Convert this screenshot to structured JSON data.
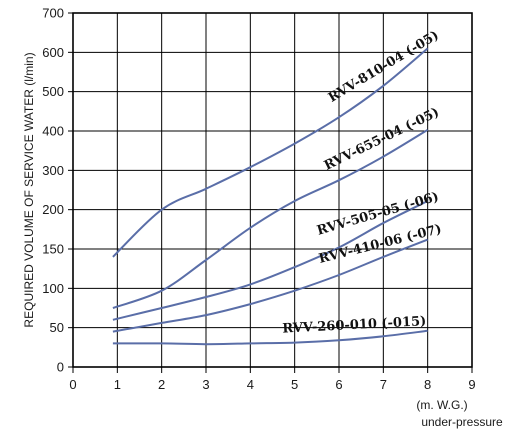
{
  "chart_data": {
    "type": "line",
    "xlabel": [
      "(m. W.G.)",
      "under-pressure"
    ],
    "ylabel": "REQUIRED VOLUME OF SERVICE WATER (l/min)",
    "xlim": [
      0,
      9
    ],
    "ylim": [
      0,
      700
    ],
    "x_ticks": [
      "0",
      "1",
      "2",
      "3",
      "4",
      "5",
      "6",
      "7",
      "8",
      "9"
    ],
    "y_ticks": [
      "0",
      "50",
      "100",
      "150",
      "200",
      "300",
      "400",
      "500",
      "600",
      "700"
    ],
    "y_scale": "non-uniform (0-200 at half spacing of 200-700 per unit)",
    "grid": true,
    "series_color": "#5a6ea8",
    "series": [
      {
        "name": "RVV-810-04 (-05)",
        "x": [
          0.9,
          2,
          3,
          4,
          5,
          6,
          7,
          8
        ],
        "y": [
          140,
          200,
          253,
          308,
          368,
          435,
          515,
          610
        ]
      },
      {
        "name": "RVV-655-04 (-05)",
        "x": [
          0.9,
          2,
          3,
          4,
          5,
          6,
          7,
          8
        ],
        "y": [
          75,
          97,
          136,
          177,
          222,
          275,
          335,
          403
        ]
      },
      {
        "name": "RVV-505-05 (-06)",
        "x": [
          0.9,
          2,
          3,
          4,
          5,
          6,
          7,
          8
        ],
        "y": [
          60,
          75,
          89,
          105,
          127,
          152,
          183,
          222
        ]
      },
      {
        "name": "RVV-410-06 (-07)",
        "x": [
          0.9,
          2,
          3,
          4,
          5,
          6,
          7,
          8
        ],
        "y": [
          45,
          56,
          66,
          80,
          97,
          117,
          140,
          162
        ]
      },
      {
        "name": "RVV-260-010 (-015)",
        "x": [
          0.9,
          2,
          3,
          4,
          5,
          6,
          7,
          8
        ],
        "y": [
          30,
          30,
          29,
          30,
          31,
          34,
          39,
          46
        ]
      }
    ]
  }
}
